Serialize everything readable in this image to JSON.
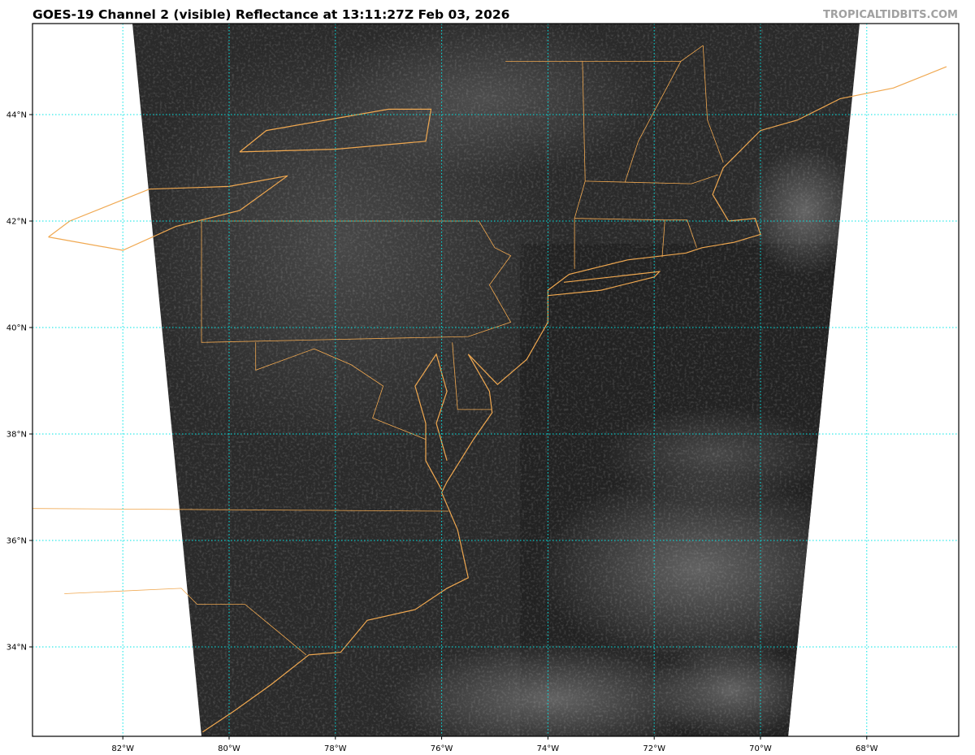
{
  "title": "GOES-19 Channel 2 (visible) Reflectance at 13:11:27Z Feb 03, 2026",
  "credit": "TROPICALTIDBITS.COM",
  "map": {
    "extent": {
      "lon": [
        -83.7,
        -66.3
      ],
      "lat": [
        32.4,
        45.7
      ]
    },
    "longitude_ticks": [
      {
        "value": -82,
        "label": "82°W"
      },
      {
        "value": -80,
        "label": "80°W"
      },
      {
        "value": -78,
        "label": "78°W"
      },
      {
        "value": -76,
        "label": "76°W"
      },
      {
        "value": -74,
        "label": "74°W"
      },
      {
        "value": -72,
        "label": "72°W"
      },
      {
        "value": -70,
        "label": "70°W"
      },
      {
        "value": -68,
        "label": "68°W"
      }
    ],
    "latitude_ticks": [
      {
        "value": 44,
        "label": "44°N"
      },
      {
        "value": 42,
        "label": "42°N"
      },
      {
        "value": 40,
        "label": "40°N"
      },
      {
        "value": 38,
        "label": "38°N"
      },
      {
        "value": 36,
        "label": "36°N"
      },
      {
        "value": 34,
        "label": "34°N"
      }
    ],
    "colors": {
      "background": "#ffffff",
      "imagery_dark": "#222222",
      "coastline": "#f0a850",
      "gridline": "#00e5e5"
    },
    "gridlines": "dotted"
  }
}
